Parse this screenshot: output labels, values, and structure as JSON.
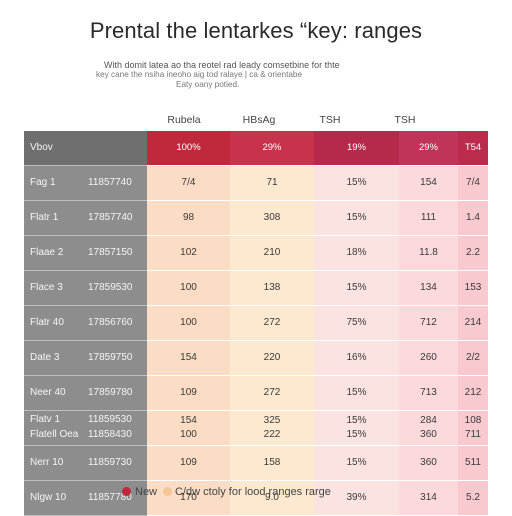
{
  "chart_data": {
    "type": "heatmap",
    "title": "Prental the lentarkes “key: ranges",
    "subtitle": [
      "With domit latea ao tha reotel rad leady comsetbine for thte",
      "key cane the nsiha ineoho aig tod ralaye | ca & orientabe",
      "Eaty oany potied."
    ],
    "columns": [
      "Rubela",
      "HBsAg",
      "TSH",
      "TSH",
      ""
    ],
    "header_row": {
      "label": "Vbov",
      "values": [
        "100%",
        "29%",
        "19%",
        "29%",
        "T54"
      ]
    },
    "rows": [
      {
        "label": "Fag 1",
        "code": "11857740",
        "values": [
          "7/4",
          "71",
          "15%",
          "154",
          "7/4"
        ]
      },
      {
        "label": "Flatr 1",
        "code": "17857740",
        "values": [
          "98",
          "308",
          "15%",
          "111",
          "1.4"
        ]
      },
      {
        "label": "Flaae 2",
        "code": "17857150",
        "values": [
          "102",
          "210",
          "18%",
          "11.8",
          "2.2"
        ]
      },
      {
        "label": "Flace 3",
        "code": "17859530",
        "values": [
          "100",
          "138",
          "15%",
          "134",
          "153"
        ]
      },
      {
        "label": "Flatr 40",
        "code": "17856760",
        "values": [
          "100",
          "272",
          "75%",
          "712",
          "214"
        ]
      },
      {
        "label": "Date 3",
        "code": "17859750",
        "values": [
          "154",
          "220",
          "16%",
          "260",
          "2/2"
        ]
      },
      {
        "label": "Neer 40",
        "code": "17859780",
        "values": [
          "109",
          "272",
          "15%",
          "713",
          "212"
        ]
      },
      {
        "label": "Flatv 1",
        "label2": "Flatell Oea",
        "code": "11859530",
        "code2": "11858430",
        "values": [
          "154",
          "325",
          "15%",
          "284",
          "108"
        ],
        "values2": [
          "100",
          "222",
          "15%",
          "360",
          "711"
        ]
      },
      {
        "label": "Nerr 10",
        "code": "11859730",
        "values": [
          "109",
          "158",
          "15%",
          "360",
          "511"
        ]
      },
      {
        "label": "Nlgw 10",
        "code": "11857780",
        "values": [
          "170",
          "9.0",
          "39%",
          "314",
          "5.2"
        ]
      }
    ],
    "legend": [
      {
        "label": "New",
        "color": "#c0283c"
      },
      {
        "label": "C/dw ctoly for lood ranges rarge",
        "color": "#f6c596"
      }
    ],
    "column_colors": {
      "header": [
        "#c0283c",
        "#c8324a",
        "#b6294b",
        "#c0345a",
        "#bb2c4c"
      ],
      "body": [
        "#fbdcc4",
        "#fde9cf",
        "#fbe3e1",
        "#fbd9dc",
        "#f9c9d0"
      ]
    }
  }
}
